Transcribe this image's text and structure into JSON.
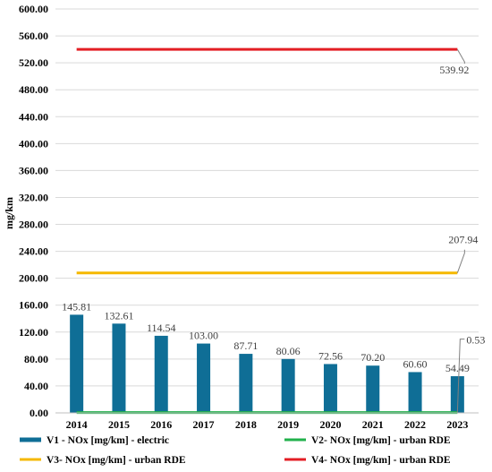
{
  "chart_data": {
    "type": "bar",
    "ylabel": "mg/km",
    "xlabel": "",
    "ylim": [
      0,
      600
    ],
    "y_ticks": [
      "0.00",
      "40.00",
      "80.00",
      "120.00",
      "160.00",
      "200.00",
      "240.00",
      "280.00",
      "320.00",
      "360.00",
      "400.00",
      "440.00",
      "480.00",
      "520.00",
      "560.00",
      "600.00"
    ],
    "grid": true,
    "legend_position": "bottom",
    "categories": [
      "2014",
      "2015",
      "2016",
      "2017",
      "2018",
      "2019",
      "2020",
      "2021",
      "2022",
      "2023"
    ],
    "series": [
      {
        "name": "V1 - NOx [mg/km] - electric",
        "type": "bar",
        "color": "#0F6E96",
        "values": [
          145.81,
          132.61,
          114.54,
          103.0,
          87.71,
          80.06,
          72.56,
          70.2,
          60.6,
          54.49
        ],
        "labels": [
          "145.81",
          "132.61",
          "114.54",
          "103.00",
          "87.71",
          "80.06",
          "72.56",
          "70.20",
          "60.60",
          "54.49"
        ]
      },
      {
        "name": "V2- NOx [mg/km] - urban RDE",
        "type": "line",
        "color": "#22B14C",
        "values": [
          0.53,
          0.53,
          0.53,
          0.53,
          0.53,
          0.53,
          0.53,
          0.53,
          0.53,
          0.53
        ],
        "end_label": "0.53"
      },
      {
        "name": "V3- NOx [mg/km] - urban RDE",
        "type": "line",
        "color": "#F5B800",
        "values": [
          207.94,
          207.94,
          207.94,
          207.94,
          207.94,
          207.94,
          207.94,
          207.94,
          207.94,
          207.94
        ],
        "end_label": "207.94"
      },
      {
        "name": "V4- NOx [mg/km] - urban RDE",
        "type": "line",
        "color": "#E31E24",
        "values": [
          539.92,
          539.92,
          539.92,
          539.92,
          539.92,
          539.92,
          539.92,
          539.92,
          539.92,
          539.92
        ],
        "end_label": "539.92"
      }
    ]
  }
}
